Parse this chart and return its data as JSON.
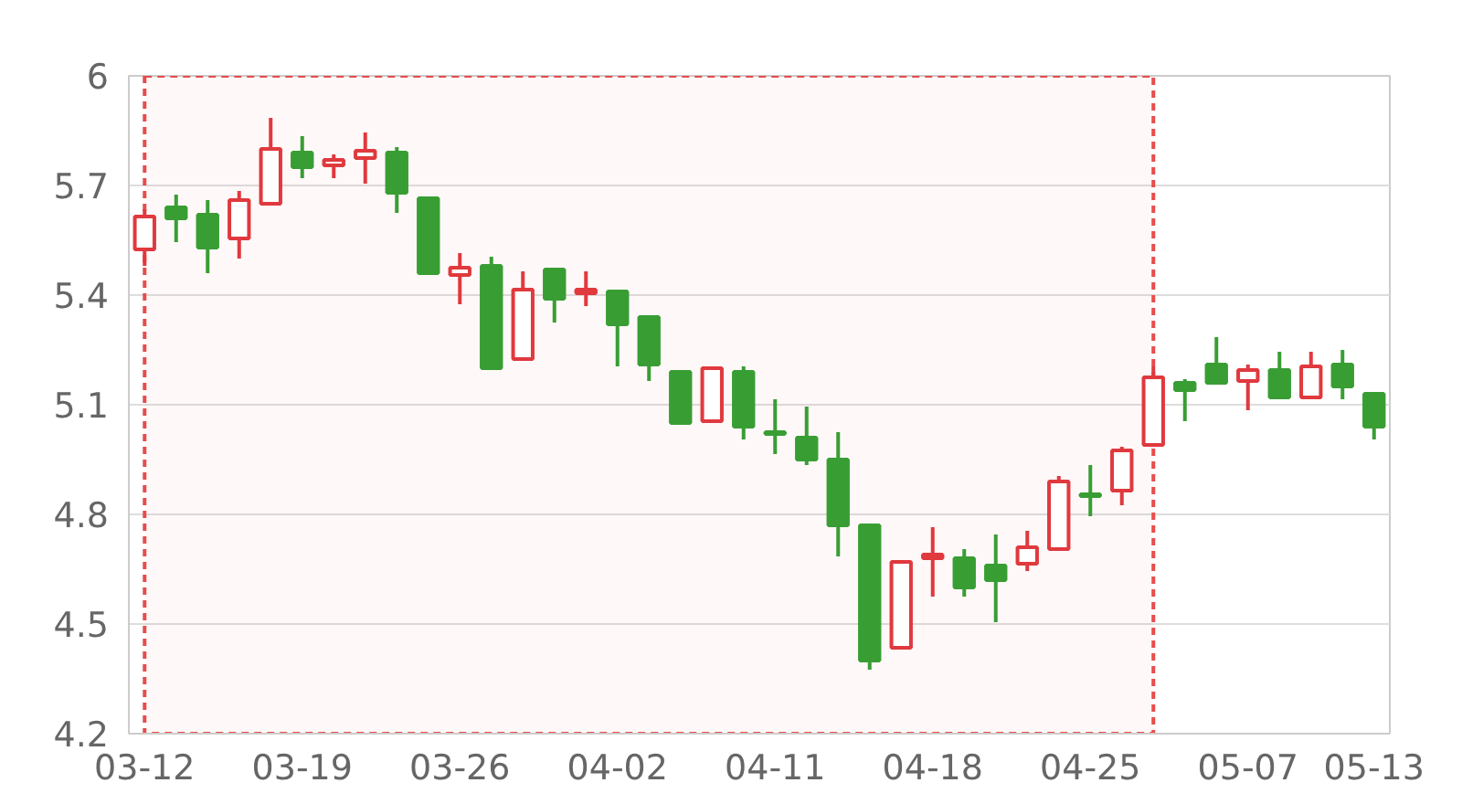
{
  "chart_data": {
    "type": "candlestick",
    "categories": [
      "03-12",
      null,
      null,
      null,
      null,
      "03-19",
      null,
      null,
      null,
      null,
      "03-26",
      null,
      null,
      null,
      null,
      "04-02",
      null,
      null,
      null,
      null,
      "04-11",
      null,
      null,
      null,
      null,
      "04-18",
      null,
      null,
      null,
      null,
      "04-25",
      null,
      null,
      null,
      null,
      "05-07",
      null,
      null,
      null,
      "05-13"
    ],
    "ohlc": [
      [
        5.525,
        5.635,
        5.48,
        5.615
      ],
      [
        5.64,
        5.675,
        5.545,
        5.61
      ],
      [
        5.62,
        5.66,
        5.46,
        5.53
      ],
      [
        5.555,
        5.685,
        5.5,
        5.66
      ],
      [
        5.65,
        5.885,
        5.645,
        5.8
      ],
      [
        5.79,
        5.835,
        5.72,
        5.75
      ],
      [
        5.755,
        5.785,
        5.72,
        5.77
      ],
      [
        5.775,
        5.845,
        5.705,
        5.795
      ],
      [
        5.79,
        5.805,
        5.625,
        5.68
      ],
      [
        5.665,
        5.665,
        5.46,
        5.46
      ],
      [
        5.455,
        5.515,
        5.375,
        5.475
      ],
      [
        5.48,
        5.505,
        5.195,
        5.2
      ],
      [
        5.225,
        5.465,
        5.225,
        5.415
      ],
      [
        5.47,
        5.47,
        5.325,
        5.39
      ],
      [
        5.405,
        5.465,
        5.37,
        5.415
      ],
      [
        5.41,
        5.41,
        5.205,
        5.32
      ],
      [
        5.34,
        5.345,
        5.165,
        5.21
      ],
      [
        5.19,
        5.19,
        5.05,
        5.05
      ],
      [
        5.055,
        5.2,
        5.055,
        5.2
      ],
      [
        5.19,
        5.205,
        5.005,
        5.04
      ],
      [
        5.025,
        5.115,
        4.965,
        5.02
      ],
      [
        5.01,
        5.095,
        4.935,
        4.95
      ],
      [
        4.95,
        5.025,
        4.685,
        4.77
      ],
      [
        4.77,
        4.77,
        4.375,
        4.4
      ],
      [
        4.435,
        4.675,
        4.435,
        4.67
      ],
      [
        4.68,
        4.765,
        4.575,
        4.69
      ],
      [
        4.68,
        4.705,
        4.575,
        4.6
      ],
      [
        4.66,
        4.745,
        4.505,
        4.62
      ],
      [
        4.665,
        4.755,
        4.645,
        4.71
      ],
      [
        4.705,
        4.905,
        4.7,
        4.89
      ],
      [
        4.855,
        4.935,
        4.795,
        4.85
      ],
      [
        4.865,
        4.985,
        4.825,
        4.975
      ],
      [
        4.99,
        5.205,
        4.99,
        5.175
      ],
      [
        5.16,
        5.17,
        5.055,
        5.14
      ],
      [
        5.21,
        5.285,
        5.155,
        5.16
      ],
      [
        5.165,
        5.21,
        5.085,
        5.195
      ],
      [
        5.195,
        5.245,
        5.115,
        5.12
      ],
      [
        5.12,
        5.245,
        5.115,
        5.205
      ],
      [
        5.21,
        5.25,
        5.115,
        5.15
      ],
      [
        5.13,
        5.13,
        5.005,
        5.04
      ]
    ],
    "colors": [
      "#e0393e",
      "#389e34",
      "#389e34",
      "#e0393e",
      "#e0393e",
      "#389e34",
      "#e0393e",
      "#e0393e",
      "#389e34",
      "#389e34",
      "#e0393e",
      "#389e34",
      "#e0393e",
      "#389e34",
      "#e0393e",
      "#389e34",
      "#389e34",
      "#389e34",
      "#e0393e",
      "#389e34",
      "#389e34",
      "#389e34",
      "#389e34",
      "#389e34",
      "#e0393e",
      "#e0393e",
      "#389e34",
      "#389e34",
      "#e0393e",
      "#e0393e",
      "#389e34",
      "#e0393e",
      "#e0393e",
      "#389e34",
      "#389e34",
      "#e0393e",
      "#389e34",
      "#e0393e",
      "#389e34",
      "#389e34"
    ],
    "ylim": [
      4.2,
      6
    ],
    "yticks": [
      4.2,
      4.5,
      4.8,
      5.1,
      5.4,
      5.7,
      6
    ],
    "grid": "y"
  }
}
